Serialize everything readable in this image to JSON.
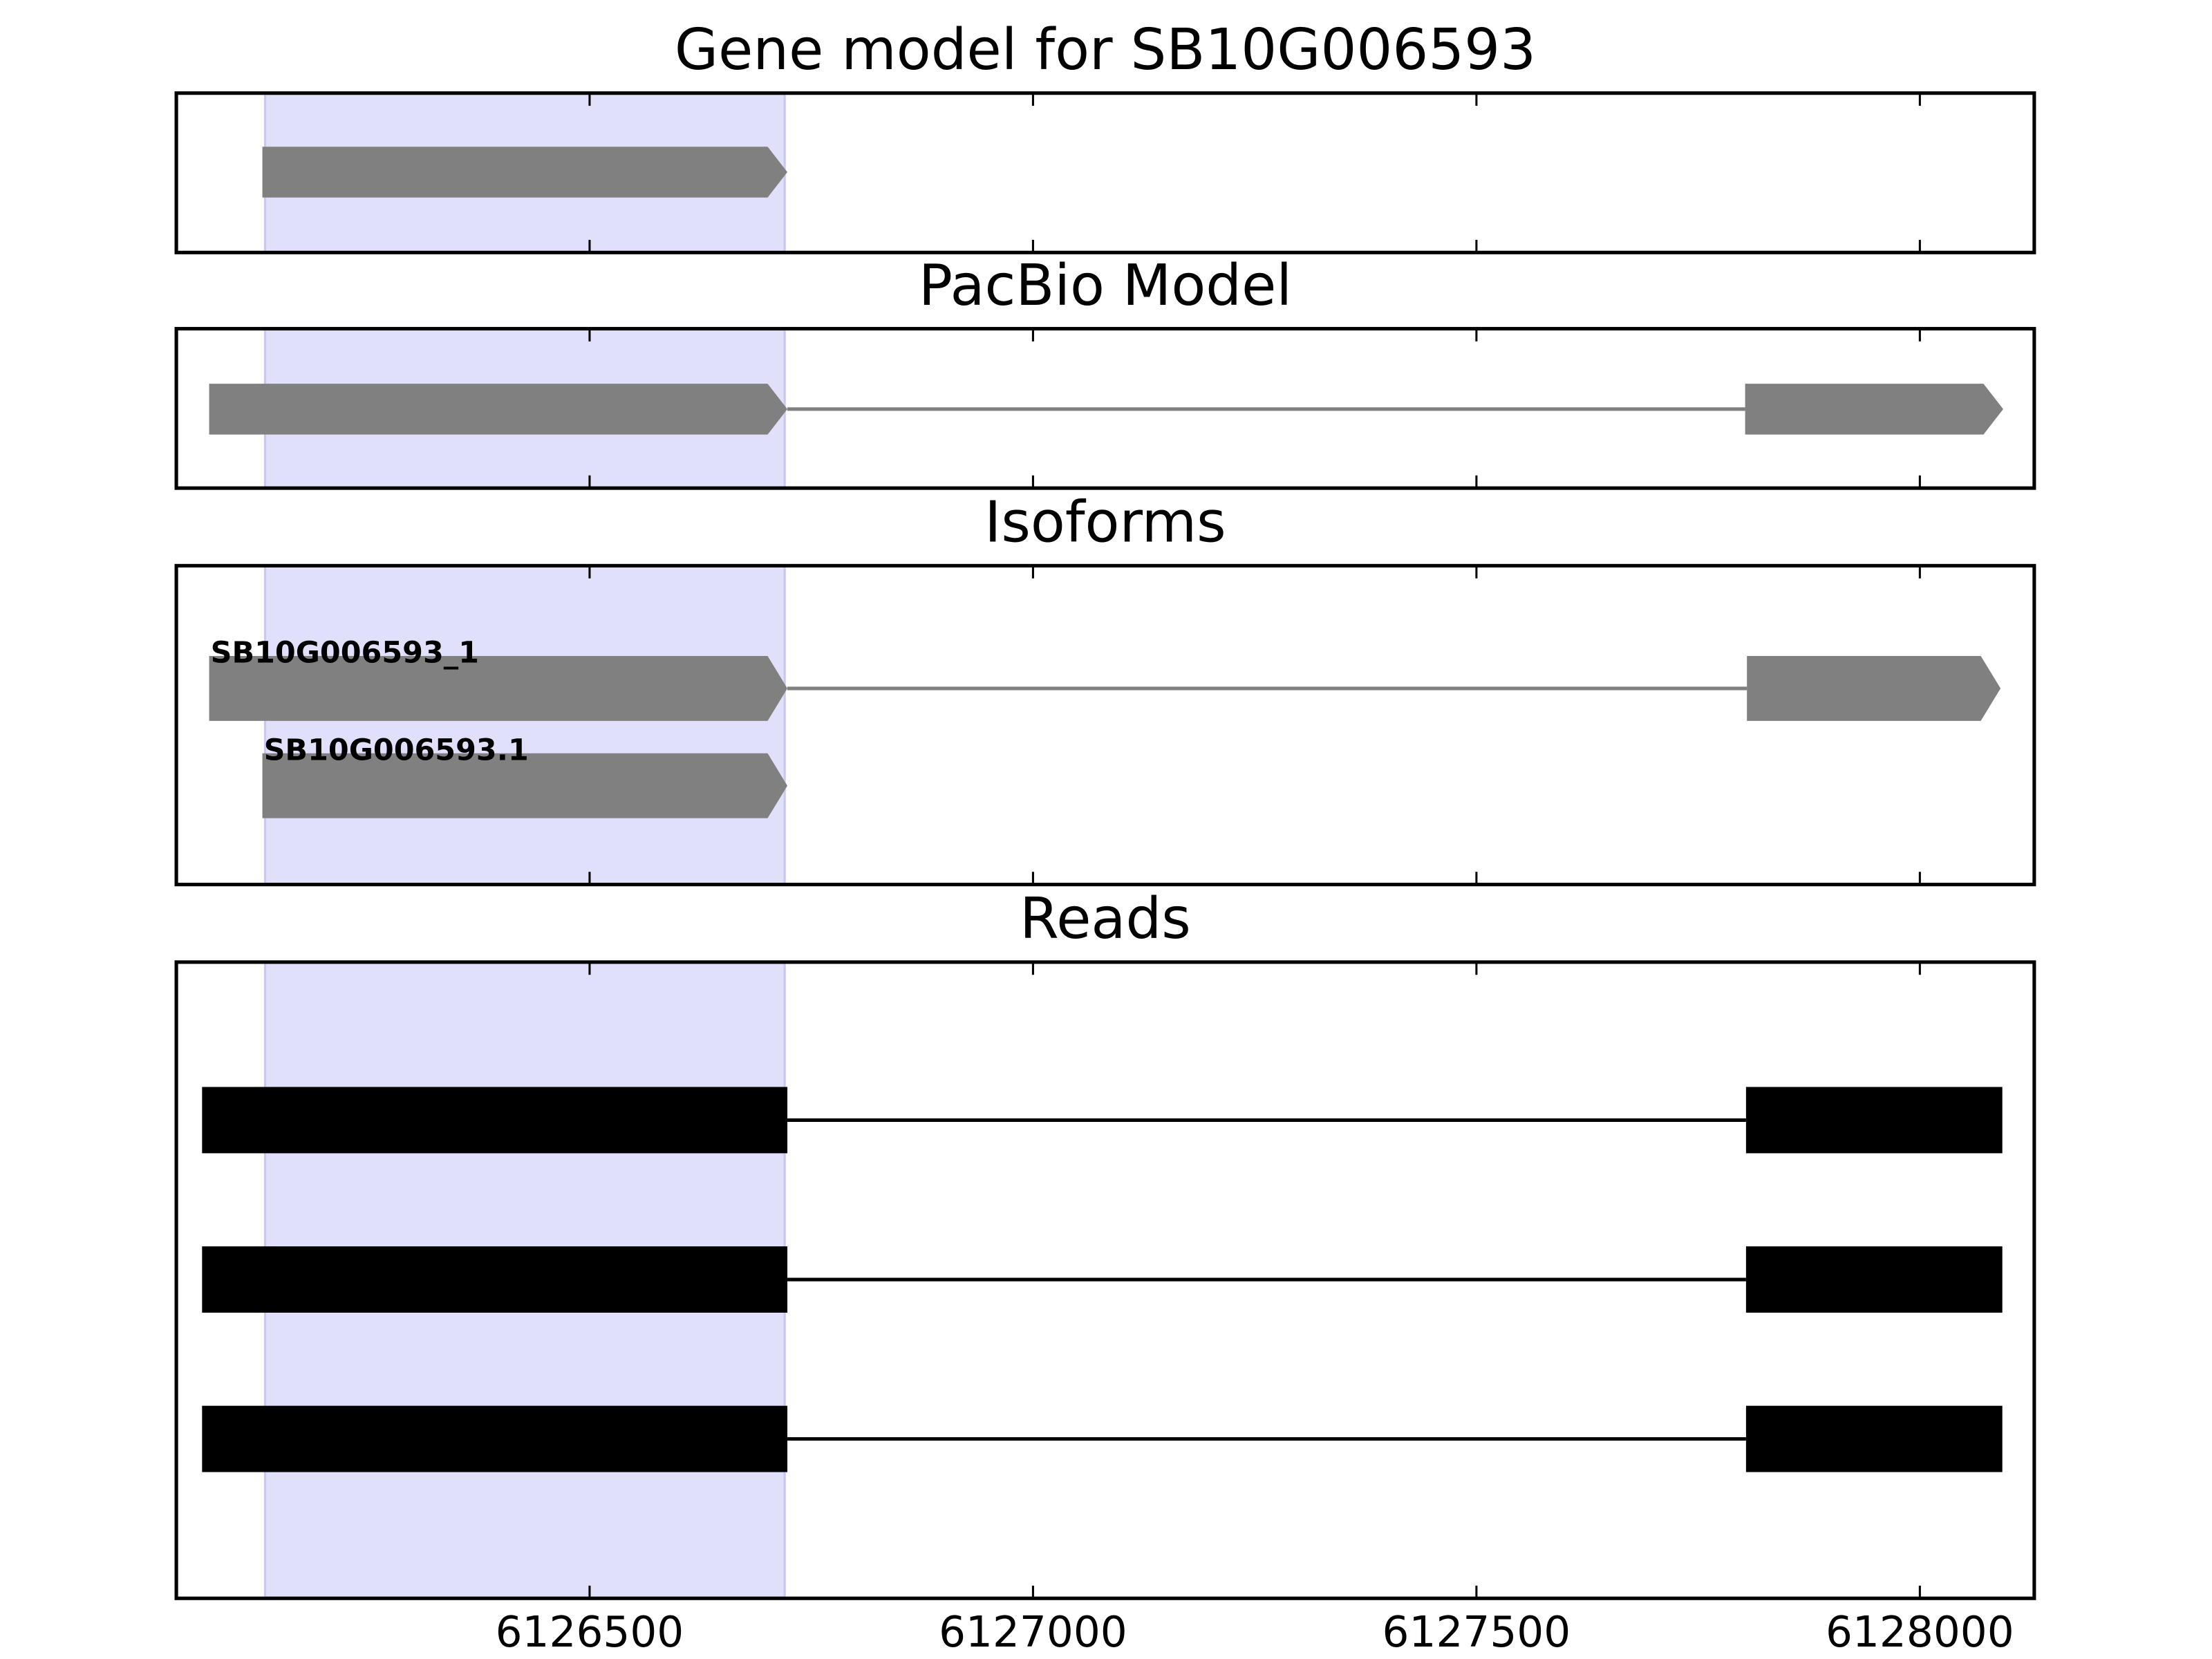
{
  "chart_data": [
    {
      "type": "track",
      "title": "Gene model for SB10G006593",
      "xlim": [
        6126034,
        6128129
      ],
      "xticks": [
        6126500,
        6127000,
        6127500,
        6128000
      ],
      "xtick_labels": false,
      "highlight": [
        6126134,
        6126720
      ],
      "highlight_color": "#e0e0fa",
      "color": "#808080",
      "arrows": true,
      "features": [
        {
          "exons": [
            [
              6126131,
              6126723
            ]
          ]
        }
      ]
    },
    {
      "type": "track",
      "title": "PacBio Model",
      "xlim": [
        6126034,
        6128129
      ],
      "xticks": [
        6126500,
        6127000,
        6127500,
        6128000
      ],
      "xtick_labels": false,
      "highlight": [
        6126134,
        6126720
      ],
      "highlight_color": "#e0e0fa",
      "color": "#808080",
      "arrows": true,
      "features": [
        {
          "exons": [
            [
              6126071,
              6126723
            ],
            [
              6127803,
              6128094
            ]
          ]
        }
      ]
    },
    {
      "type": "track",
      "title": "Isoforms",
      "xlim": [
        6126034,
        6128129
      ],
      "xticks": [
        6126500,
        6127000,
        6127500,
        6128000
      ],
      "xtick_labels": false,
      "highlight": [
        6126134,
        6126720
      ],
      "highlight_color": "#e0e0fa",
      "color": "#808080",
      "arrows": true,
      "features": [
        {
          "label": "SB10G006593_1",
          "exons": [
            [
              6126071,
              6126723
            ],
            [
              6127805,
              6128091
            ]
          ]
        },
        {
          "label": "SB10G006593.1",
          "exons": [
            [
              6126131,
              6126723
            ]
          ]
        }
      ]
    },
    {
      "type": "track",
      "title": "Reads",
      "xlim": [
        6126034,
        6128129
      ],
      "xticks": [
        6126500,
        6127000,
        6127500,
        6128000
      ],
      "xtick_labels": true,
      "highlight": [
        6126134,
        6126720
      ],
      "highlight_color": "#e0e0fa",
      "color": "#000000",
      "arrows": false,
      "features": [
        {
          "exons": [
            [
              6126063,
              6126723
            ],
            [
              6127804,
              6128093
            ]
          ]
        },
        {
          "exons": [
            [
              6126063,
              6126723
            ],
            [
              6127804,
              6128093
            ]
          ]
        },
        {
          "exons": [
            [
              6126063,
              6126723
            ],
            [
              6127804,
              6128093
            ]
          ]
        }
      ]
    }
  ]
}
